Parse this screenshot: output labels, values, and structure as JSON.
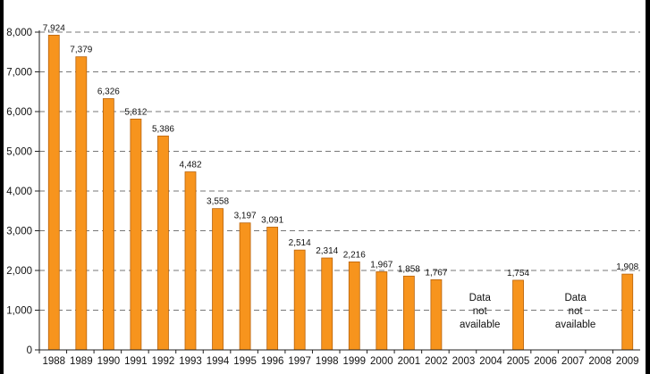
{
  "chart_data": {
    "type": "bar",
    "title": "",
    "xlabel": "",
    "ylabel": "",
    "ylim": [
      0,
      8000
    ],
    "yticks": [
      0,
      1000,
      2000,
      3000,
      4000,
      5000,
      6000,
      7000,
      8000
    ],
    "ytick_labels": [
      "0",
      "1,000",
      "2,000",
      "3,000",
      "4,000",
      "5,000",
      "6,000",
      "7,000",
      "8,000"
    ],
    "grid": "horizontal dashed",
    "bar_color": "#f7941d",
    "bar_edge_color": "#b8620a",
    "categories": [
      "1988",
      "1989",
      "1990",
      "1991",
      "1992",
      "1993",
      "1994",
      "1995",
      "1996",
      "1997",
      "1998",
      "1999",
      "2000",
      "2001",
      "2002",
      "2003",
      "2004",
      "2005",
      "2006",
      "2007",
      "2008",
      "2009"
    ],
    "values": [
      7924,
      7379,
      6326,
      5812,
      5386,
      4482,
      3558,
      3197,
      3091,
      2514,
      2314,
      2216,
      1967,
      1858,
      1767,
      null,
      null,
      1754,
      null,
      null,
      null,
      1908
    ],
    "value_labels": [
      "7,924",
      "7,379",
      "6,326",
      "5,812",
      "5,386",
      "4,482",
      "3,558",
      "3,197",
      "3,091",
      "2,514",
      "2,314",
      "2,216",
      "1,967",
      "1,858",
      "1,767",
      "",
      "",
      "1,754",
      "",
      "",
      "",
      "1,908"
    ],
    "annotations": [
      {
        "lines": [
          "Data",
          "not",
          "available"
        ],
        "span": [
          "2003",
          "2004"
        ]
      },
      {
        "lines": [
          "Data",
          "not",
          "available"
        ],
        "span": [
          "2006",
          "2008"
        ]
      }
    ]
  }
}
